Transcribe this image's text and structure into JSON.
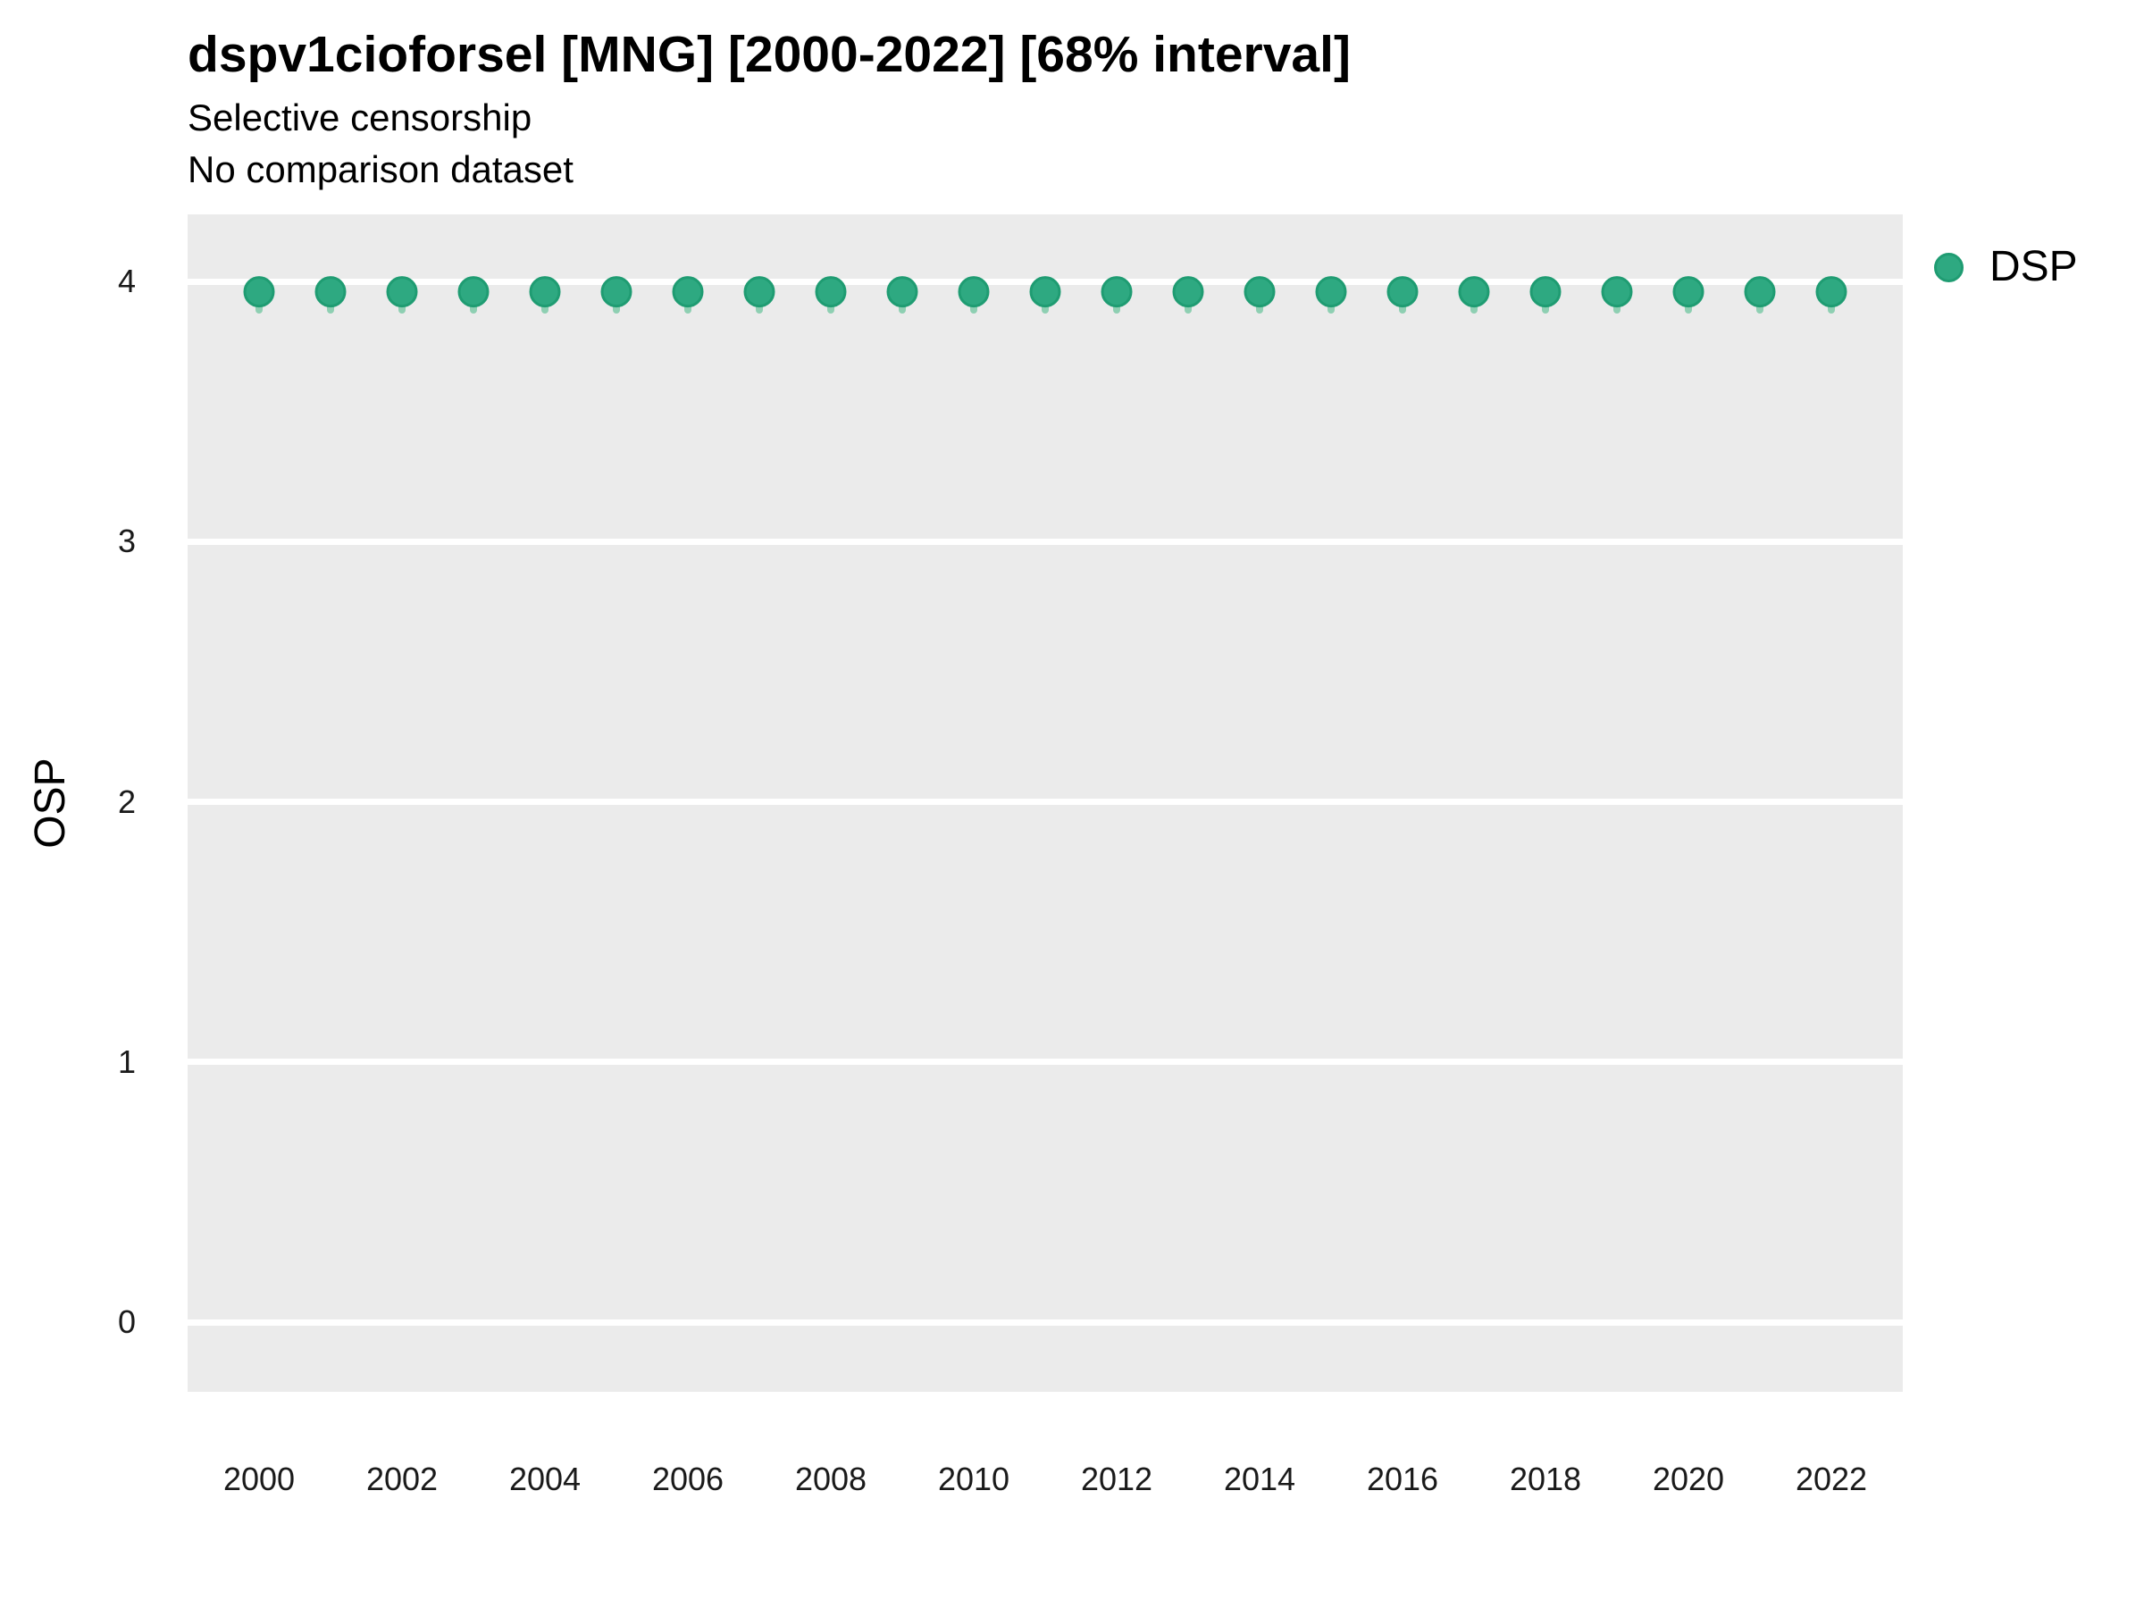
{
  "chart_data": {
    "type": "scatter",
    "title": "dspv1cioforsel [MNG] [2000-2022] [68% interval]",
    "subtitle": "Selective censorship",
    "note": "No comparison dataset",
    "ylabel": "OSP",
    "x": [
      2000,
      2001,
      2002,
      2003,
      2004,
      2005,
      2006,
      2007,
      2008,
      2009,
      2010,
      2011,
      2012,
      2013,
      2014,
      2015,
      2016,
      2017,
      2018,
      2019,
      2020,
      2021,
      2022
    ],
    "series": [
      {
        "name": "DSP",
        "values": [
          3.96,
          3.96,
          3.96,
          3.96,
          3.96,
          3.96,
          3.96,
          3.96,
          3.96,
          3.96,
          3.96,
          3.96,
          3.96,
          3.96,
          3.96,
          3.96,
          3.96,
          3.96,
          3.96,
          3.96,
          3.96,
          3.96,
          3.96
        ],
        "interval_low": [
          3.89,
          3.89,
          3.89,
          3.89,
          3.89,
          3.89,
          3.89,
          3.89,
          3.89,
          3.89,
          3.89,
          3.89,
          3.89,
          3.89,
          3.89,
          3.89,
          3.89,
          3.89,
          3.89,
          3.89,
          3.89,
          3.89,
          3.89
        ],
        "interval_high": [
          4.0,
          4.0,
          4.0,
          4.0,
          4.0,
          4.0,
          4.0,
          4.0,
          4.0,
          4.0,
          4.0,
          4.0,
          4.0,
          4.0,
          4.0,
          4.0,
          4.0,
          4.0,
          4.0,
          4.0,
          4.0,
          4.0,
          4.0
        ],
        "point_color": "#2ea981",
        "point_stroke_color": "#1f9c72",
        "interval_color": "#8ecfb2"
      }
    ],
    "x_ticks": [
      2000,
      2002,
      2004,
      2006,
      2008,
      2010,
      2012,
      2014,
      2016,
      2018,
      2020,
      2022
    ],
    "y_ticks": [
      0,
      1,
      2,
      3,
      4
    ],
    "xlim": [
      1999,
      2023
    ],
    "ylim": [
      -0.27,
      4.26
    ],
    "grid": "horizontal-major-only",
    "panel_bg": "#ebebeb",
    "gridline_color": "#ffffff",
    "legend": {
      "position": "right",
      "entries": [
        {
          "label": "DSP",
          "color": "#2ea981"
        }
      ]
    }
  }
}
